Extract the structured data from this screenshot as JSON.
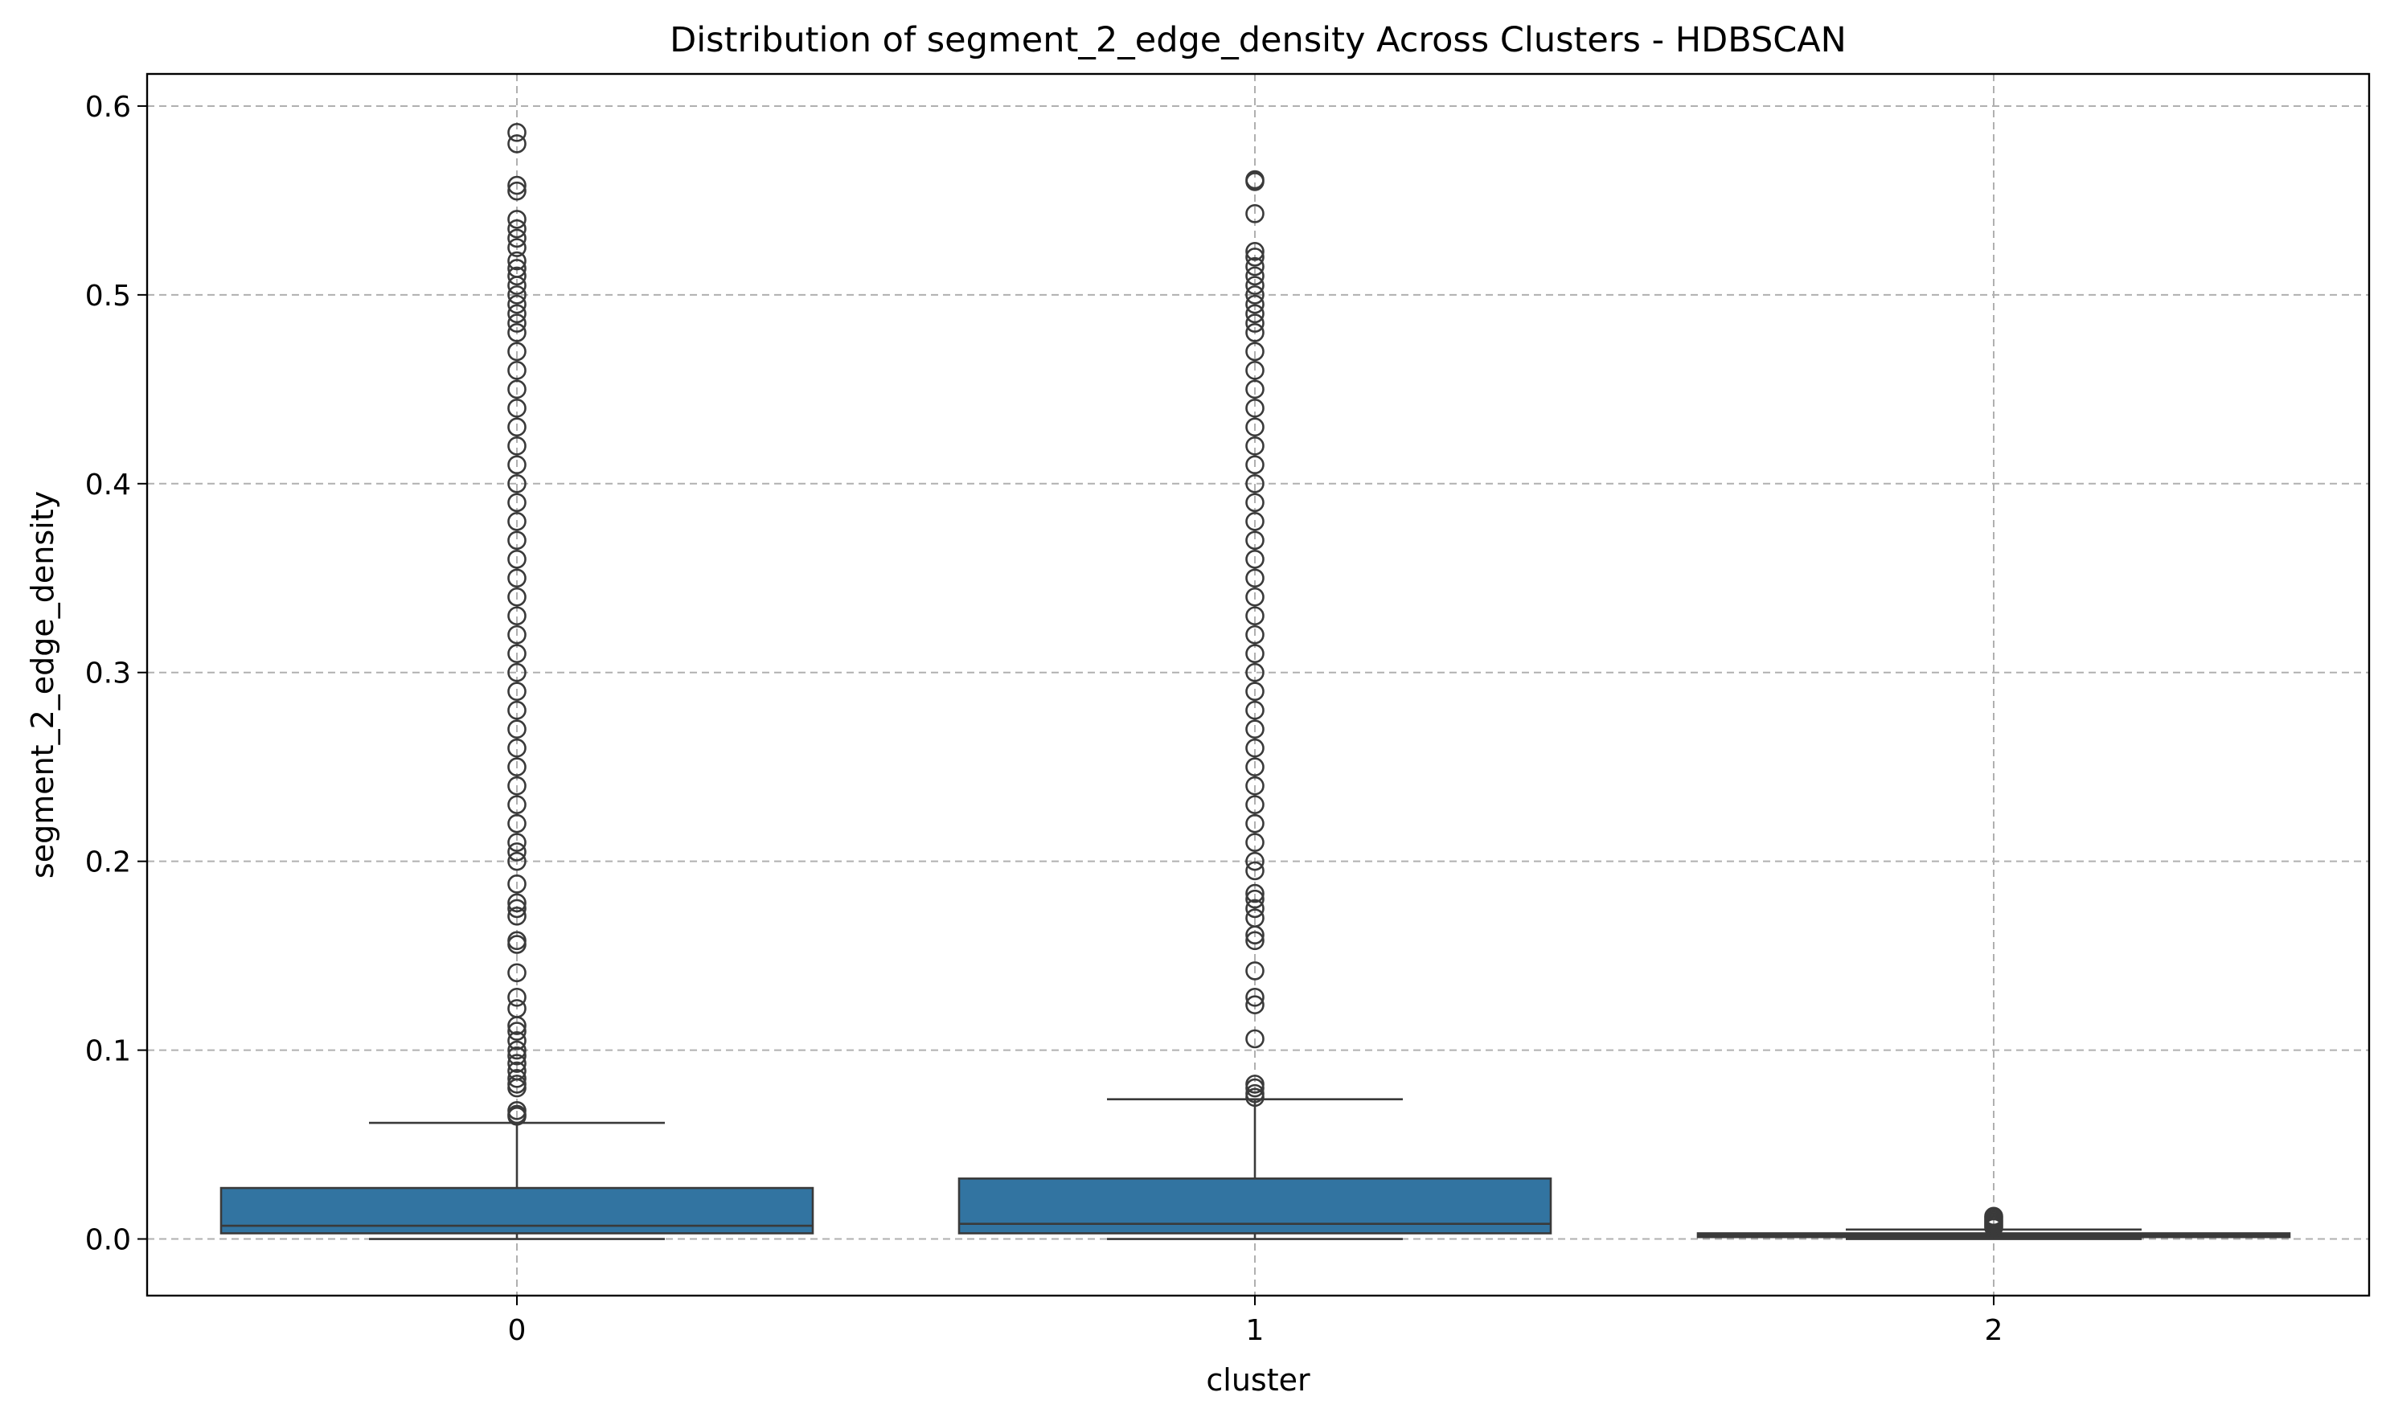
{
  "chart_data": {
    "type": "box",
    "title": "Distribution of segment_2_edge_density Across Clusters - HDBSCAN",
    "xlabel": "cluster",
    "ylabel": "segment_2_edge_density",
    "categories": [
      "0",
      "1",
      "2"
    ],
    "ylim": [
      -0.03,
      0.617
    ],
    "yticks": [
      0.0,
      0.1,
      0.2,
      0.3,
      0.4,
      0.5,
      0.6
    ],
    "ytick_labels": [
      "0.0",
      "0.1",
      "0.2",
      "0.3",
      "0.4",
      "0.5",
      "0.6"
    ],
    "grid": true,
    "legend": "none",
    "box_color": "#3274a1",
    "line_color": "#3a3a3a",
    "boxes": [
      {
        "category": "0",
        "whisker_low": 0.0,
        "q1": 0.003,
        "median": 0.007,
        "q3": 0.027,
        "whisker_high": 0.0615,
        "outliers": [
          0.586,
          0.58,
          0.558,
          0.555,
          0.54,
          0.535,
          0.53,
          0.525,
          0.518,
          0.514,
          0.51,
          0.505,
          0.5,
          0.495,
          0.49,
          0.485,
          0.48,
          0.47,
          0.46,
          0.45,
          0.44,
          0.43,
          0.42,
          0.41,
          0.4,
          0.39,
          0.38,
          0.37,
          0.36,
          0.35,
          0.34,
          0.33,
          0.32,
          0.31,
          0.3,
          0.29,
          0.28,
          0.27,
          0.26,
          0.25,
          0.24,
          0.23,
          0.22,
          0.21,
          0.205,
          0.2,
          0.188,
          0.178,
          0.175,
          0.171,
          0.158,
          0.156,
          0.141,
          0.128,
          0.122,
          0.113,
          0.11,
          0.105,
          0.1,
          0.097,
          0.093,
          0.089,
          0.085,
          0.082,
          0.08,
          0.068,
          0.066,
          0.065
        ]
      },
      {
        "category": "1",
        "whisker_low": 0.0,
        "q1": 0.003,
        "median": 0.008,
        "q3": 0.032,
        "whisker_high": 0.074,
        "outliers": [
          0.561,
          0.56,
          0.543,
          0.523,
          0.52,
          0.515,
          0.51,
          0.505,
          0.5,
          0.495,
          0.49,
          0.485,
          0.48,
          0.47,
          0.46,
          0.45,
          0.44,
          0.43,
          0.42,
          0.41,
          0.4,
          0.39,
          0.38,
          0.37,
          0.36,
          0.35,
          0.34,
          0.33,
          0.32,
          0.31,
          0.3,
          0.29,
          0.28,
          0.27,
          0.26,
          0.25,
          0.24,
          0.23,
          0.22,
          0.21,
          0.2,
          0.195,
          0.183,
          0.18,
          0.175,
          0.17,
          0.161,
          0.158,
          0.142,
          0.128,
          0.124,
          0.106,
          0.082,
          0.08,
          0.077,
          0.075
        ]
      },
      {
        "category": "2",
        "whisker_low": 0.0,
        "q1": 0.001,
        "median": 0.002,
        "q3": 0.003,
        "whisker_high": 0.005,
        "outliers": [
          0.012,
          0.011,
          0.01,
          0.009,
          0.008,
          0.007,
          0.006
        ]
      }
    ]
  }
}
